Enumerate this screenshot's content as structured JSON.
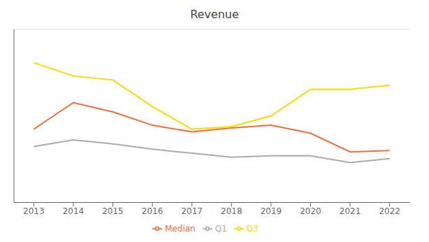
{
  "chart_data": {
    "type": "line",
    "title": "Revenue",
    "x": [
      2013,
      2014,
      2015,
      2016,
      2017,
      2018,
      2019,
      2020,
      2021,
      2022
    ],
    "series": [
      {
        "name": "Median",
        "color": "#E8703A",
        "values": [
          55,
          75,
          68,
          58,
          53,
          56,
          58,
          52,
          38,
          39
        ]
      },
      {
        "name": "Q1",
        "color": "#AAAAAA",
        "values": [
          42,
          47,
          44,
          40,
          37,
          34,
          35,
          35,
          30,
          33
        ]
      },
      {
        "name": "Q3",
        "color": "#FFD700",
        "values": [
          105,
          95,
          92,
          72,
          55,
          57,
          65,
          85,
          85,
          88
        ]
      }
    ],
    "xlim": [
      2012.5,
      2022.5
    ],
    "xticks": [
      2013,
      2014,
      2015,
      2016,
      2017,
      2018,
      2019,
      2020,
      2021,
      2022
    ],
    "ylim": [
      0,
      130
    ],
    "yticks": [
      0,
      13,
      26,
      39,
      52,
      65,
      78,
      91,
      104,
      117,
      130
    ],
    "grid": true,
    "tick_labels": "x",
    "legend": "bottom"
  }
}
